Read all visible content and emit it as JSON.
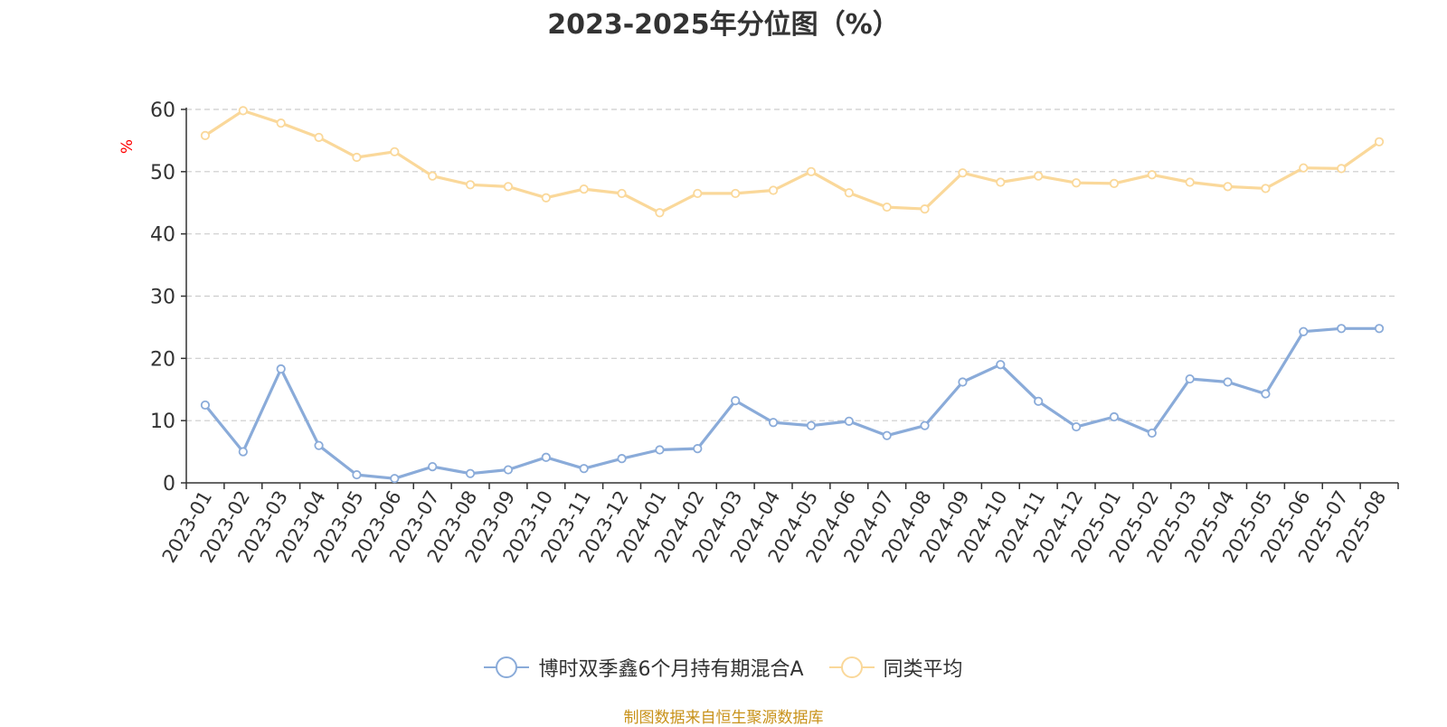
{
  "chart_data": {
    "type": "line",
    "title": "2023-2025年分位图（%）",
    "ylabel": "%",
    "ylim": [
      0,
      60
    ],
    "yticks": [
      0,
      10,
      20,
      30,
      40,
      50,
      60
    ],
    "grid": true,
    "legend_position": "bottom",
    "categories": [
      "2023-01",
      "2023-02",
      "2023-03",
      "2023-04",
      "2023-05",
      "2023-06",
      "2023-07",
      "2023-08",
      "2023-09",
      "2023-10",
      "2023-11",
      "2023-12",
      "2024-01",
      "2024-02",
      "2024-03",
      "2024-04",
      "2024-05",
      "2024-06",
      "2024-07",
      "2024-08",
      "2024-09",
      "2024-10",
      "2024-11",
      "2024-12",
      "2025-01",
      "2025-02",
      "2025-03",
      "2025-04",
      "2025-05",
      "2025-06",
      "2025-07",
      "2025-08"
    ],
    "series": [
      {
        "name": "博时双季鑫6个月持有期混合A",
        "color": "#8aabd9",
        "values": [
          12.5,
          5.0,
          18.3,
          6.0,
          1.3,
          0.7,
          2.6,
          1.5,
          2.1,
          4.1,
          2.3,
          3.9,
          5.3,
          5.5,
          13.2,
          9.7,
          9.2,
          9.9,
          7.6,
          9.2,
          16.2,
          19.0,
          13.1,
          9.0,
          10.6,
          8.0,
          16.7,
          16.2,
          14.3,
          24.3,
          24.8,
          24.8
        ]
      },
      {
        "name": "同类平均",
        "color": "#fad89a",
        "values": [
          55.8,
          59.8,
          57.8,
          55.5,
          52.3,
          53.2,
          49.3,
          47.9,
          47.6,
          45.8,
          47.2,
          46.5,
          43.4,
          46.5,
          46.5,
          47.0,
          50.0,
          46.6,
          44.3,
          44.0,
          49.8,
          48.3,
          49.3,
          48.2,
          48.1,
          49.5,
          48.3,
          47.6,
          47.3,
          50.6,
          50.5,
          54.8
        ]
      }
    ]
  },
  "source_text": "制图数据来自恒生聚源数据库"
}
